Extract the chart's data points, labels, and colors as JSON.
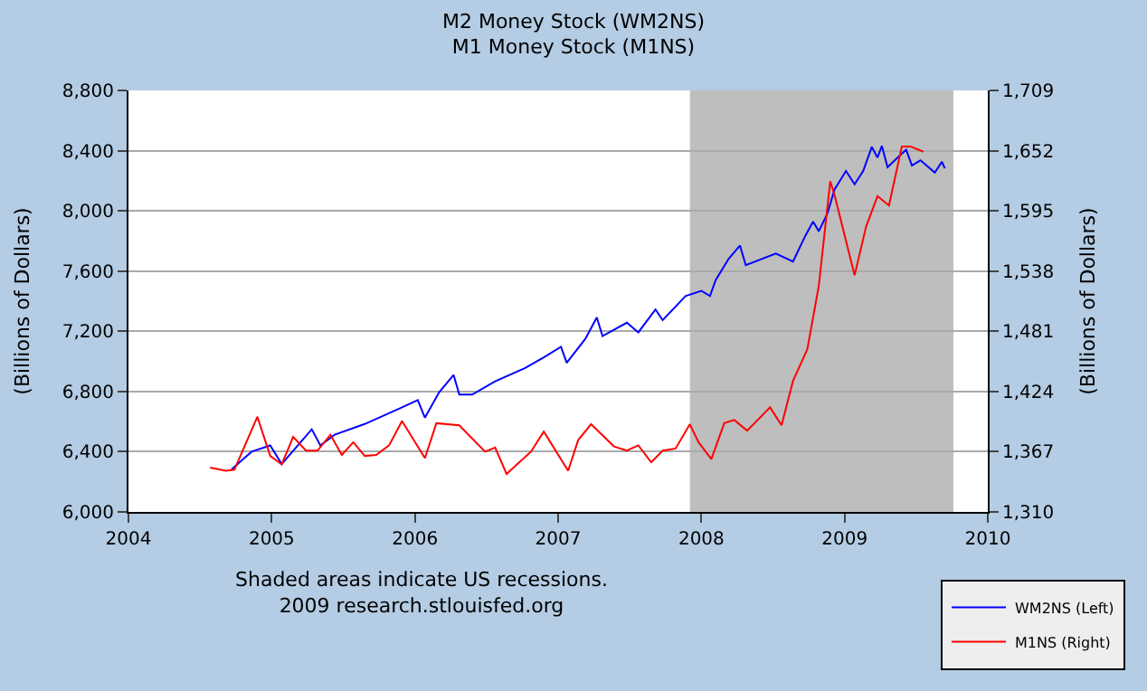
{
  "chart_data": {
    "type": "line",
    "title": "M2 Money Stock (WM2NS)",
    "subtitle": "M1 Money Stock (M1NS)",
    "ylabel": "(Billions of Dollars)",
    "y2label": "(Billions of Dollars)",
    "annotations": [
      "Shaded areas indicate US recessions.",
      "2009 research.stlouisfed.org"
    ],
    "series": [
      {
        "name": "WM2NS (Left)",
        "color": "#0000ff",
        "x": [
          2004.72,
          2004.86,
          2004.99,
          2005.07,
          2005.28,
          2005.34,
          2005.44,
          2005.65,
          2005.9,
          2006.02,
          2006.07,
          2006.17,
          2006.27,
          2006.31,
          2006.4,
          2006.56,
          2006.77,
          2006.9,
          2007.02,
          2007.06,
          2007.19,
          2007.27,
          2007.31,
          2007.48,
          2007.56,
          2007.68,
          2007.73,
          2007.89,
          2008.0,
          2008.06,
          2008.1,
          2008.19,
          2008.27,
          2008.31,
          2008.52,
          2008.64,
          2008.72,
          2008.78,
          2008.82,
          2008.88,
          2008.93,
          2009.01,
          2009.07,
          2009.13,
          2009.19,
          2009.23,
          2009.26,
          2009.3,
          2009.37,
          2009.43,
          2009.47,
          2009.53,
          2009.63,
          2009.68,
          2009.7
        ],
        "values": [
          6283,
          6400,
          6442,
          6318,
          6549,
          6442,
          6513,
          6584,
          6690,
          6743,
          6626,
          6796,
          6910,
          6779,
          6779,
          6867,
          6956,
          7027,
          7097,
          6991,
          7150,
          7292,
          7168,
          7257,
          7193,
          7345,
          7274,
          7434,
          7469,
          7434,
          7540,
          7681,
          7770,
          7639,
          7717,
          7664,
          7823,
          7929,
          7865,
          7982,
          8142,
          8265,
          8177,
          8265,
          8425,
          8354,
          8432,
          8290,
          8354,
          8407,
          8301,
          8336,
          8255,
          8326,
          8283
        ]
      },
      {
        "name": "M1NS (Right)",
        "color": "#ff0000",
        "axis": "y2",
        "x": [
          2004.57,
          2004.68,
          2004.74,
          2004.9,
          2004.99,
          2005.07,
          2005.15,
          2005.24,
          2005.32,
          2005.41,
          2005.49,
          2005.57,
          2005.65,
          2005.73,
          2005.82,
          2005.91,
          2006.07,
          2006.15,
          2006.31,
          2006.49,
          2006.56,
          2006.64,
          2006.81,
          2006.9,
          2007.07,
          2007.14,
          2007.23,
          2007.39,
          2007.48,
          2007.56,
          2007.65,
          2007.73,
          2007.82,
          2007.92,
          2007.98,
          2008.07,
          2008.16,
          2008.23,
          2008.32,
          2008.48,
          2008.56,
          2008.64,
          2008.74,
          2008.82,
          2008.9,
          2008.93,
          2009.07,
          2009.15,
          2009.23,
          2009.31,
          2009.4,
          2009.46,
          2009.55
        ],
        "values": [
          1352,
          1349,
          1350,
          1400,
          1363,
          1355,
          1381,
          1368,
          1368,
          1383,
          1364,
          1376,
          1363,
          1364,
          1373,
          1396,
          1361,
          1394,
          1392,
          1367,
          1371,
          1346,
          1367,
          1386,
          1349,
          1378,
          1393,
          1372,
          1368,
          1373,
          1357,
          1368,
          1370,
          1393,
          1376,
          1360,
          1394,
          1397,
          1387,
          1409,
          1392,
          1434,
          1464,
          1524,
          1623,
          1610,
          1534,
          1580,
          1609,
          1600,
          1656,
          1656,
          1651
        ]
      }
    ],
    "bands": [
      {
        "axis": "x",
        "from": 2007.92,
        "to": 2009.76,
        "color": "#bebebe"
      }
    ],
    "xlim": [
      2004,
      2010
    ],
    "xticks": [
      2004,
      2005,
      2006,
      2007,
      2008,
      2009,
      2010
    ],
    "ylim": [
      6000,
      8800
    ],
    "yticks": [
      {
        "value": 6000,
        "label": "6,000"
      },
      {
        "value": 6400,
        "label": "6,400"
      },
      {
        "value": 6800,
        "label": "6,800"
      },
      {
        "value": 7200,
        "label": "7,200"
      },
      {
        "value": 7600,
        "label": "7,600"
      },
      {
        "value": 8000,
        "label": "8,000"
      },
      {
        "value": 8400,
        "label": "8,400"
      },
      {
        "value": 8800,
        "label": "8,800"
      }
    ],
    "y2lim": [
      1310,
      1709
    ],
    "y2ticks": [
      {
        "value": 1310,
        "label": "1,310"
      },
      {
        "value": 1367,
        "label": "1,367"
      },
      {
        "value": 1424,
        "label": "1,424"
      },
      {
        "value": 1481,
        "label": "1,481"
      },
      {
        "value": 1538,
        "label": "1,538"
      },
      {
        "value": 1595,
        "label": "1,595"
      },
      {
        "value": 1652,
        "label": "1,652"
      },
      {
        "value": 1709,
        "label": "1,709"
      }
    ],
    "grid": "y",
    "legend": "bottom right",
    "line_style": "solid"
  }
}
